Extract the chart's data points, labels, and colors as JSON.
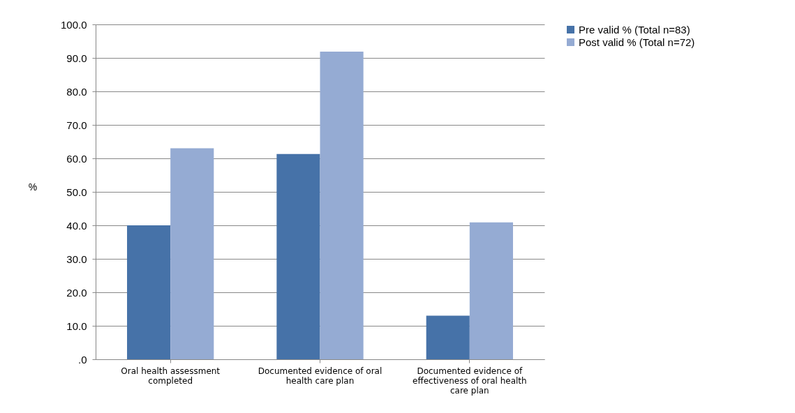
{
  "chart_data": {
    "type": "bar",
    "ylabel": "%",
    "categories": [
      "Oral health assessment completed",
      "Documented evidence of oral health care plan",
      "Documented evidence of effectiveness of oral health care plan"
    ],
    "series": [
      {
        "name": "Pre valid % (Total n=83)",
        "color": "#4672a8",
        "values": [
          40.0,
          61.3,
          13.0
        ]
      },
      {
        "name": "Post valid % (Total n=72)",
        "color": "#95abd3",
        "values": [
          63.0,
          91.9,
          40.9
        ]
      }
    ],
    "ylim": [
      0,
      100
    ],
    "yticks": [
      {
        "value": 0,
        "label": ".0"
      },
      {
        "value": 10,
        "label": "10.0"
      },
      {
        "value": 20,
        "label": "20.0"
      },
      {
        "value": 30,
        "label": "30.0"
      },
      {
        "value": 40,
        "label": "40.0"
      },
      {
        "value": 50,
        "label": "50.0"
      },
      {
        "value": 60,
        "label": "60.0"
      },
      {
        "value": 70,
        "label": "70.0"
      },
      {
        "value": 80,
        "label": "80.0"
      },
      {
        "value": 90,
        "label": "90.0"
      },
      {
        "value": 100,
        "label": "100.0"
      }
    ],
    "grid": "y",
    "legend": "right"
  }
}
